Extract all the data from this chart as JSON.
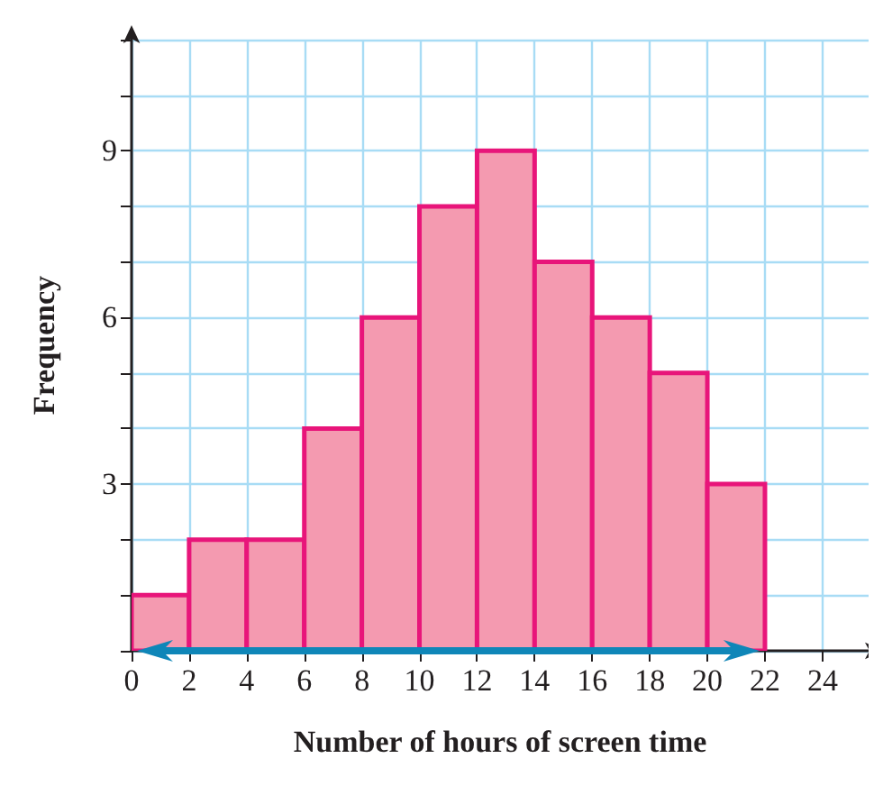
{
  "chart_data": {
    "type": "histogram",
    "xlabel": "Number of hours of screen time",
    "ylabel": "Frequency",
    "bins": [
      0,
      2,
      4,
      6,
      8,
      10,
      12,
      14,
      16,
      18,
      20,
      22
    ],
    "values": [
      1,
      2,
      2,
      4,
      6,
      8,
      9,
      7,
      6,
      5,
      3
    ],
    "color": "#f49ab0",
    "xlim": [
      0,
      25.6
    ],
    "ylim": [
      0,
      11
    ],
    "xticks": [
      {
        "value": 0,
        "label": "0"
      },
      2,
      4,
      6,
      8,
      10,
      12,
      14,
      16,
      18,
      20,
      22,
      24
    ],
    "yticks": [
      {
        "value": 0,
        "label": null
      },
      {
        "value": 1,
        "label": null
      },
      {
        "value": 2,
        "label": null
      },
      3,
      {
        "value": 4,
        "label": null
      },
      {
        "value": 5,
        "label": null
      },
      6,
      {
        "value": 7,
        "label": null
      },
      {
        "value": 8,
        "label": null
      },
      9,
      {
        "value": 10,
        "label": null
      },
      {
        "value": 11,
        "label": null
      }
    ],
    "grid": true
  }
}
